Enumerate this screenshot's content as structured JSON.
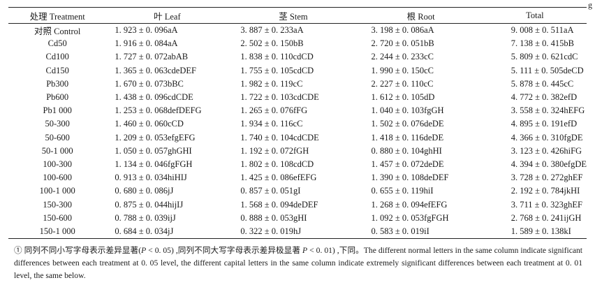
{
  "unit_label": "g",
  "headers": [
    "处理 Treatment",
    "叶 Leaf",
    "茎 Stem",
    "根 Root",
    "Total"
  ],
  "rows": [
    [
      "对照 Control",
      "1. 923 ± 0. 096aA",
      "3. 887 ± 0. 233aA",
      "3. 198 ± 0. 086aA",
      "9. 008 ± 0. 511aA"
    ],
    [
      "Cd50",
      "1. 916 ± 0. 084aA",
      "2. 502 ± 0. 150bB",
      "2. 720 ± 0. 051bB",
      "7. 138 ± 0. 415bB"
    ],
    [
      "Cd100",
      "1. 727 ± 0. 072abAB",
      "1. 838 ± 0. 110cdCD",
      "2. 244 ± 0. 233cC",
      "5. 809 ± 0. 621cdC"
    ],
    [
      "Cd150",
      "1. 365 ± 0. 063cdeDEF",
      "1. 755 ± 0. 105cdCD",
      "1. 990 ± 0. 150cC",
      "5. 111 ± 0. 505deCD"
    ],
    [
      "Pb300",
      "1. 670 ± 0. 073bBC",
      "1. 982 ± 0. 119cC",
      "2. 227 ± 0. 110cC",
      "5. 878 ± 0. 445cC"
    ],
    [
      "Pb600",
      "1. 438 ± 0. 096cdCDE",
      "1. 722 ± 0. 103cdCDE",
      "1. 612 ± 0. 105dD",
      "4. 772 ± 0. 382efD"
    ],
    [
      "Pb1 000",
      "1. 253 ± 0. 068defDEFG",
      "1. 265 ± 0. 076fFG",
      "1. 040 ± 0. 103fgGH",
      "3. 558 ± 0. 324hEFG"
    ],
    [
      "50-300",
      "1. 460 ± 0. 060cCD",
      "1. 934 ± 0. 116cC",
      "1. 502 ± 0. 076deDE",
      "4. 895 ± 0. 191efD"
    ],
    [
      "50-600",
      "1. 209 ± 0. 053efgEFG",
      "1. 740 ± 0. 104cdCDE",
      "1. 418 ± 0. 116deDE",
      "4. 366 ± 0. 310fgDE"
    ],
    [
      "50-1 000",
      "1. 050 ± 0. 057ghGHI",
      "1. 192 ± 0. 072fGH",
      "0. 880 ± 0. 104ghHI",
      "3. 123 ± 0. 426hiFG"
    ],
    [
      "100-300",
      "1. 134 ± 0. 046fgFGH",
      "1. 802 ± 0. 108cdCD",
      "1. 457 ± 0. 072deDE",
      "4. 394 ± 0. 380efgDE"
    ],
    [
      "100-600",
      "0. 913 ± 0. 034hiHIJ",
      "1. 425 ± 0. 086efEFG",
      "1. 390 ± 0. 108deDEF",
      "3. 728 ± 0. 272ghEF"
    ],
    [
      "100-1 000",
      "0. 680 ± 0. 086jJ",
      "0. 857 ± 0. 051gI",
      "0. 655 ± 0. 119hiI",
      "2. 192 ± 0. 784jkHI"
    ],
    [
      "150-300",
      "0. 875 ± 0. 044hijIJ",
      "1. 568 ± 0. 094deDEF",
      "1. 268 ± 0. 094efEFG",
      "3. 711 ± 0. 323ghEF"
    ],
    [
      "150-600",
      "0. 788 ± 0. 039ijJ",
      "0. 888 ± 0. 053gHI",
      "1. 092 ± 0. 053fgFGH",
      "2. 768 ± 0. 241ijGH"
    ],
    [
      "150-1 000",
      "0. 684 ± 0. 034jJ",
      "0. 322 ± 0. 019hJ",
      "0. 583 ± 0. 019iI",
      "1. 589 ± 0. 138kI"
    ]
  ],
  "footnote": {
    "part1": "① 同列不同小写字母表示差异显著(",
    "p1": "P",
    "part2": " < 0. 05) ,同列不同大写字母表示差异极显著 ",
    "p2": "P",
    "part3": " < 0. 01) ,下同。The different normal letters in the same column indicate significant differences between each treatment at 0. 05 level, the different capital letters in the same column indicate extremely significant differences between each treatment at 0. 01 level, the same below."
  }
}
